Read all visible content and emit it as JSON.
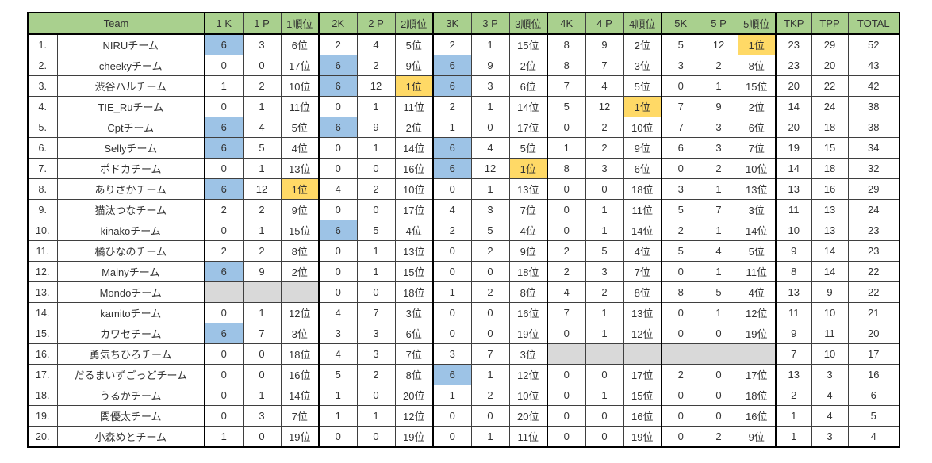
{
  "sheet": {
    "team_header": "Team",
    "columns": [
      "1 K",
      "1 P",
      "1順位",
      "2K",
      "2 P",
      "2順位",
      "3K",
      "3 P",
      "3順位",
      "4K",
      "4 P",
      "4順位",
      "5K",
      "5 P",
      "5順位",
      "TKP",
      "TPP",
      "TOTAL"
    ],
    "rows": [
      {
        "no": "1.",
        "team": "NIRUチーム",
        "values": [
          "6",
          "3",
          "6位",
          "2",
          "4",
          "5位",
          "2",
          "1",
          "15位",
          "8",
          "9",
          "2位",
          "5",
          "12",
          "1位",
          "23",
          "29",
          "52"
        ],
        "hl": {
          "0": "blue",
          "14": "yellow"
        }
      },
      {
        "no": "2.",
        "team": "cheekyチーム",
        "values": [
          "0",
          "0",
          "17位",
          "6",
          "2",
          "9位",
          "6",
          "9",
          "2位",
          "8",
          "7",
          "3位",
          "3",
          "2",
          "8位",
          "23",
          "20",
          "43"
        ],
        "hl": {
          "3": "blue",
          "6": "blue"
        }
      },
      {
        "no": "3.",
        "team": "渋谷ハルチーム",
        "values": [
          "1",
          "2",
          "10位",
          "6",
          "12",
          "1位",
          "6",
          "3",
          "6位",
          "7",
          "4",
          "5位",
          "0",
          "1",
          "15位",
          "20",
          "22",
          "42"
        ],
        "hl": {
          "3": "blue",
          "5": "yellow",
          "6": "blue"
        }
      },
      {
        "no": "4.",
        "team": "TIE_Ruチーム",
        "values": [
          "0",
          "1",
          "11位",
          "0",
          "1",
          "11位",
          "2",
          "1",
          "14位",
          "5",
          "12",
          "1位",
          "7",
          "9",
          "2位",
          "14",
          "24",
          "38"
        ],
        "hl": {
          "11": "yellow"
        }
      },
      {
        "no": "5.",
        "team": "Cptチーム",
        "values": [
          "6",
          "4",
          "5位",
          "6",
          "9",
          "2位",
          "1",
          "0",
          "17位",
          "0",
          "2",
          "10位",
          "7",
          "3",
          "6位",
          "20",
          "18",
          "38"
        ],
        "hl": {
          "0": "blue",
          "3": "blue"
        }
      },
      {
        "no": "6.",
        "team": "Sellyチーム",
        "values": [
          "6",
          "5",
          "4位",
          "0",
          "1",
          "14位",
          "6",
          "4",
          "5位",
          "1",
          "2",
          "9位",
          "6",
          "3",
          "7位",
          "19",
          "15",
          "34"
        ],
        "hl": {
          "0": "blue",
          "6": "blue"
        }
      },
      {
        "no": "7.",
        "team": "ポドカチーム",
        "values": [
          "0",
          "1",
          "13位",
          "0",
          "0",
          "16位",
          "6",
          "12",
          "1位",
          "8",
          "3",
          "6位",
          "0",
          "2",
          "10位",
          "14",
          "18",
          "32"
        ],
        "hl": {
          "6": "blue",
          "8": "yellow"
        }
      },
      {
        "no": "8.",
        "team": "ありさかチーム",
        "values": [
          "6",
          "12",
          "1位",
          "4",
          "2",
          "10位",
          "0",
          "1",
          "13位",
          "0",
          "0",
          "18位",
          "3",
          "1",
          "13位",
          "13",
          "16",
          "29"
        ],
        "hl": {
          "0": "blue",
          "2": "yellow"
        }
      },
      {
        "no": "9.",
        "team": "猫汰つなチーム",
        "values": [
          "2",
          "2",
          "9位",
          "0",
          "0",
          "17位",
          "4",
          "3",
          "7位",
          "0",
          "1",
          "11位",
          "5",
          "7",
          "3位",
          "11",
          "13",
          "24"
        ],
        "hl": {}
      },
      {
        "no": "10.",
        "team": "kinakoチーム",
        "values": [
          "0",
          "1",
          "15位",
          "6",
          "5",
          "4位",
          "2",
          "5",
          "4位",
          "0",
          "1",
          "14位",
          "2",
          "1",
          "14位",
          "10",
          "13",
          "23"
        ],
        "hl": {
          "3": "blue"
        }
      },
      {
        "no": "11.",
        "team": "橘ひなのチーム",
        "values": [
          "2",
          "2",
          "8位",
          "0",
          "1",
          "13位",
          "0",
          "2",
          "9位",
          "2",
          "5",
          "4位",
          "5",
          "4",
          "5位",
          "9",
          "14",
          "23"
        ],
        "hl": {}
      },
      {
        "no": "12.",
        "team": "Mainyチーム",
        "values": [
          "6",
          "9",
          "2位",
          "0",
          "1",
          "15位",
          "0",
          "0",
          "18位",
          "2",
          "3",
          "7位",
          "0",
          "1",
          "11位",
          "8",
          "14",
          "22"
        ],
        "hl": {
          "0": "blue"
        }
      },
      {
        "no": "13.",
        "team": "Mondoチーム",
        "values": [
          "",
          "",
          "",
          "0",
          "0",
          "18位",
          "1",
          "2",
          "8位",
          "4",
          "2",
          "8位",
          "8",
          "5",
          "4位",
          "13",
          "9",
          "22"
        ],
        "hl": {
          "0": "gray",
          "1": "gray",
          "2": "gray"
        }
      },
      {
        "no": "14.",
        "team": "kamitoチーム",
        "values": [
          "0",
          "1",
          "12位",
          "4",
          "7",
          "3位",
          "0",
          "0",
          "16位",
          "7",
          "1",
          "13位",
          "0",
          "1",
          "12位",
          "11",
          "10",
          "21"
        ],
        "hl": {}
      },
      {
        "no": "15.",
        "team": "カワセチーム",
        "values": [
          "6",
          "7",
          "3位",
          "3",
          "3",
          "6位",
          "0",
          "0",
          "19位",
          "0",
          "1",
          "12位",
          "0",
          "0",
          "19位",
          "9",
          "11",
          "20"
        ],
        "hl": {
          "0": "blue"
        }
      },
      {
        "no": "16.",
        "team": "勇気ちひろチーム",
        "values": [
          "0",
          "0",
          "18位",
          "4",
          "3",
          "7位",
          "3",
          "7",
          "3位",
          "",
          "",
          "",
          "",
          "",
          "",
          "7",
          "10",
          "17"
        ],
        "hl": {
          "9": "gray",
          "10": "gray",
          "11": "gray",
          "12": "gray",
          "13": "gray",
          "14": "gray"
        }
      },
      {
        "no": "17.",
        "team": "だるまいずごっどチーム",
        "values": [
          "0",
          "0",
          "16位",
          "5",
          "2",
          "8位",
          "6",
          "1",
          "12位",
          "0",
          "0",
          "17位",
          "2",
          "0",
          "17位",
          "13",
          "3",
          "16"
        ],
        "hl": {
          "6": "blue"
        }
      },
      {
        "no": "18.",
        "team": "うるかチーム",
        "values": [
          "0",
          "1",
          "14位",
          "1",
          "0",
          "20位",
          "1",
          "2",
          "10位",
          "0",
          "1",
          "15位",
          "0",
          "0",
          "18位",
          "2",
          "4",
          "6"
        ],
        "hl": {}
      },
      {
        "no": "19.",
        "team": "関優太チーム",
        "values": [
          "0",
          "3",
          "7位",
          "1",
          "1",
          "12位",
          "0",
          "0",
          "20位",
          "0",
          "0",
          "16位",
          "0",
          "0",
          "16位",
          "1",
          "4",
          "5"
        ],
        "hl": {}
      },
      {
        "no": "20.",
        "team": "小森めとチーム",
        "values": [
          "1",
          "0",
          "19位",
          "0",
          "0",
          "19位",
          "0",
          "1",
          "11位",
          "0",
          "0",
          "19位",
          "0",
          "2",
          "9位",
          "1",
          "3",
          "4"
        ],
        "hl": {}
      }
    ]
  },
  "colors": {
    "header_green": "#A9D08E",
    "kill_highlight_blue": "#9DC3E6",
    "first_place_yellow": "#FFD966",
    "not_played_gray": "#D9D9D9"
  }
}
